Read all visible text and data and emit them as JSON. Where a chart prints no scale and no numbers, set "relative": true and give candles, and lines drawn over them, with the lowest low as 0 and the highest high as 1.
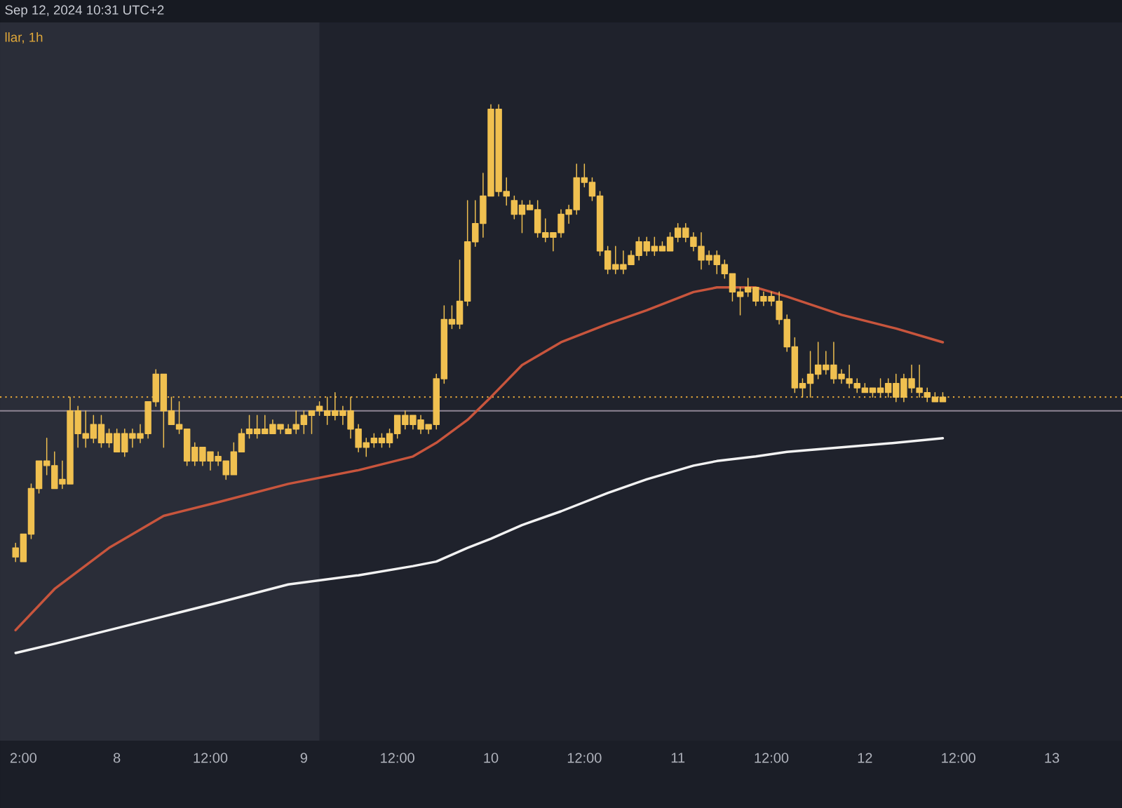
{
  "chart_data": {
    "type": "candlestick",
    "title": "Sep 12, 2024 10:31 UTC+2",
    "subtitle": "llar, 1h",
    "relative": true,
    "xlim": [
      "2024-09-07T09:00",
      "2024-09-13T09:00"
    ],
    "xticks": [
      {
        "value": "2024-09-07T12:00",
        "label": "2:00"
      },
      {
        "value": "2024-09-08T00:00",
        "label": "8"
      },
      {
        "value": "2024-09-08T12:00",
        "label": "12:00"
      },
      {
        "value": "2024-09-09T00:00",
        "label": "9"
      },
      {
        "value": "2024-09-09T12:00",
        "label": "12:00"
      },
      {
        "value": "2024-09-10T00:00",
        "label": "10"
      },
      {
        "value": "2024-09-10T12:00",
        "label": "12:00"
      },
      {
        "value": "2024-09-11T00:00",
        "label": "11"
      },
      {
        "value": "2024-09-11T12:00",
        "label": "12:00"
      },
      {
        "value": "2024-09-12T00:00",
        "label": "12"
      },
      {
        "value": "2024-09-12T12:00",
        "label": "12:00"
      },
      {
        "value": "2024-09-13T00:00",
        "label": "13"
      }
    ],
    "bands": [
      {
        "axis": "x",
        "from": "2024-09-07T09:00",
        "to": "2024-09-09T02:00",
        "color": "#2a2d38"
      }
    ],
    "ref_lines": [
      {
        "axis": "y",
        "value": 0.33,
        "color": "#8e8593",
        "line_style": "solid"
      },
      {
        "axis": "y",
        "value": 0.36,
        "color": "#e2a63a",
        "line_style": "dotted"
      }
    ],
    "series": [
      {
        "type": "line",
        "color": "#f2f2f2",
        "x": [
          "2024-09-07T11:00",
          "2024-09-07T16:00",
          "2024-09-07T23:00",
          "2024-09-08T06:00",
          "2024-09-08T13:00",
          "2024-09-08T22:00",
          "2024-09-09T07:00",
          "2024-09-09T14:00",
          "2024-09-09T17:00",
          "2024-09-09T21:00",
          "2024-09-10T00:00",
          "2024-09-10T04:00",
          "2024-09-10T09:00",
          "2024-09-10T15:00",
          "2024-09-10T20:00",
          "2024-09-11T02:00",
          "2024-09-11T05:00",
          "2024-09-11T10:00",
          "2024-09-11T14:00",
          "2024-09-11T21:00",
          "2024-09-12T04:00",
          "2024-09-12T10:00"
        ],
        "values": [
          -0.2,
          -0.18,
          -0.15,
          -0.12,
          -0.09,
          -0.05,
          -0.03,
          -0.01,
          0.0,
          0.03,
          0.05,
          0.08,
          0.11,
          0.15,
          0.18,
          0.21,
          0.22,
          0.23,
          0.24,
          0.25,
          0.26,
          0.27
        ]
      },
      {
        "type": "line",
        "color": "#c8553d",
        "x": [
          "2024-09-07T11:00",
          "2024-09-07T16:00",
          "2024-09-07T23:00",
          "2024-09-08T06:00",
          "2024-09-08T13:00",
          "2024-09-08T22:00",
          "2024-09-09T07:00",
          "2024-09-09T14:00",
          "2024-09-09T17:00",
          "2024-09-09T21:00",
          "2024-09-10T00:00",
          "2024-09-10T04:00",
          "2024-09-10T09:00",
          "2024-09-10T15:00",
          "2024-09-10T20:00",
          "2024-09-11T02:00",
          "2024-09-11T05:00",
          "2024-09-11T10:00",
          "2024-09-11T14:00",
          "2024-09-11T21:00",
          "2024-09-12T04:00",
          "2024-09-12T10:00"
        ],
        "values": [
          -0.15,
          -0.06,
          0.03,
          0.1,
          0.13,
          0.17,
          0.2,
          0.23,
          0.26,
          0.31,
          0.36,
          0.43,
          0.48,
          0.52,
          0.55,
          0.59,
          0.6,
          0.6,
          0.58,
          0.54,
          0.51,
          0.48
        ]
      },
      {
        "color": "#f0c050",
        "x": [
          "2024-09-07T11:00",
          "2024-09-07T12:00",
          "2024-09-07T13:00",
          "2024-09-07T14:00",
          "2024-09-07T15:00",
          "2024-09-07T16:00",
          "2024-09-07T17:00",
          "2024-09-07T18:00",
          "2024-09-07T19:00",
          "2024-09-07T20:00",
          "2024-09-07T21:00",
          "2024-09-07T22:00",
          "2024-09-07T23:00",
          "2024-09-08T00:00",
          "2024-09-08T01:00",
          "2024-09-08T02:00",
          "2024-09-08T03:00",
          "2024-09-08T04:00",
          "2024-09-08T05:00",
          "2024-09-08T06:00",
          "2024-09-08T07:00",
          "2024-09-08T08:00",
          "2024-09-08T09:00",
          "2024-09-08T10:00",
          "2024-09-08T11:00",
          "2024-09-08T12:00",
          "2024-09-08T13:00",
          "2024-09-08T14:00",
          "2024-09-08T15:00",
          "2024-09-08T16:00",
          "2024-09-08T17:00",
          "2024-09-08T18:00",
          "2024-09-08T19:00",
          "2024-09-08T20:00",
          "2024-09-08T21:00",
          "2024-09-08T22:00",
          "2024-09-08T23:00",
          "2024-09-09T00:00",
          "2024-09-09T01:00",
          "2024-09-09T02:00",
          "2024-09-09T03:00",
          "2024-09-09T04:00",
          "2024-09-09T05:00",
          "2024-09-09T06:00",
          "2024-09-09T07:00",
          "2024-09-09T08:00",
          "2024-09-09T09:00",
          "2024-09-09T10:00",
          "2024-09-09T11:00",
          "2024-09-09T12:00",
          "2024-09-09T13:00",
          "2024-09-09T14:00",
          "2024-09-09T15:00",
          "2024-09-09T16:00",
          "2024-09-09T17:00",
          "2024-09-09T18:00",
          "2024-09-09T19:00",
          "2024-09-09T20:00",
          "2024-09-09T21:00",
          "2024-09-09T22:00",
          "2024-09-09T23:00",
          "2024-09-10T00:00",
          "2024-09-10T01:00",
          "2024-09-10T02:00",
          "2024-09-10T03:00",
          "2024-09-10T04:00",
          "2024-09-10T05:00",
          "2024-09-10T06:00",
          "2024-09-10T07:00",
          "2024-09-10T08:00",
          "2024-09-10T09:00",
          "2024-09-10T10:00",
          "2024-09-10T11:00",
          "2024-09-10T12:00",
          "2024-09-10T13:00",
          "2024-09-10T14:00",
          "2024-09-10T15:00",
          "2024-09-10T16:00",
          "2024-09-10T17:00",
          "2024-09-10T18:00",
          "2024-09-10T19:00",
          "2024-09-10T20:00",
          "2024-09-10T21:00",
          "2024-09-10T22:00",
          "2024-09-10T23:00",
          "2024-09-11T00:00",
          "2024-09-11T01:00",
          "2024-09-11T02:00",
          "2024-09-11T03:00",
          "2024-09-11T04:00",
          "2024-09-11T05:00",
          "2024-09-11T06:00",
          "2024-09-11T07:00",
          "2024-09-11T08:00",
          "2024-09-11T09:00",
          "2024-09-11T10:00",
          "2024-09-11T11:00",
          "2024-09-11T12:00",
          "2024-09-11T13:00",
          "2024-09-11T14:00",
          "2024-09-11T15:00",
          "2024-09-11T16:00",
          "2024-09-11T17:00",
          "2024-09-11T18:00",
          "2024-09-11T19:00",
          "2024-09-11T20:00",
          "2024-09-11T21:00",
          "2024-09-11T22:00",
          "2024-09-11T23:00",
          "2024-09-12T00:00",
          "2024-09-12T01:00",
          "2024-09-12T02:00",
          "2024-09-12T03:00",
          "2024-09-12T04:00",
          "2024-09-12T05:00",
          "2024-09-12T06:00",
          "2024-09-12T07:00",
          "2024-09-12T08:00",
          "2024-09-12T09:00",
          "2024-09-12T10:00"
        ],
        "ohlc": [
          [
            0.01,
            0.04,
            0.0,
            0.03
          ],
          [
            0.0,
            0.06,
            0.0,
            0.06
          ],
          [
            0.06,
            0.17,
            0.05,
            0.16
          ],
          [
            0.16,
            0.22,
            0.15,
            0.22
          ],
          [
            0.21,
            0.27,
            0.19,
            0.22
          ],
          [
            0.21,
            0.24,
            0.16,
            0.16
          ],
          [
            0.17,
            0.22,
            0.16,
            0.18
          ],
          [
            0.17,
            0.36,
            0.17,
            0.33
          ],
          [
            0.33,
            0.34,
            0.25,
            0.28
          ],
          [
            0.28,
            0.33,
            0.25,
            0.27
          ],
          [
            0.27,
            0.32,
            0.26,
            0.3
          ],
          [
            0.3,
            0.32,
            0.25,
            0.26
          ],
          [
            0.26,
            0.29,
            0.25,
            0.28
          ],
          [
            0.28,
            0.29,
            0.24,
            0.24
          ],
          [
            0.24,
            0.29,
            0.23,
            0.28
          ],
          [
            0.28,
            0.29,
            0.25,
            0.27
          ],
          [
            0.27,
            0.3,
            0.26,
            0.28
          ],
          [
            0.28,
            0.35,
            0.27,
            0.35
          ],
          [
            0.35,
            0.42,
            0.34,
            0.41
          ],
          [
            0.41,
            0.41,
            0.25,
            0.33
          ],
          [
            0.33,
            0.36,
            0.3,
            0.3
          ],
          [
            0.3,
            0.35,
            0.28,
            0.29
          ],
          [
            0.29,
            0.29,
            0.21,
            0.22
          ],
          [
            0.22,
            0.26,
            0.21,
            0.25
          ],
          [
            0.25,
            0.25,
            0.21,
            0.22
          ],
          [
            0.22,
            0.24,
            0.2,
            0.24
          ],
          [
            0.23,
            0.24,
            0.21,
            0.22
          ],
          [
            0.22,
            0.22,
            0.18,
            0.19
          ],
          [
            0.19,
            0.26,
            0.19,
            0.24
          ],
          [
            0.24,
            0.29,
            0.24,
            0.28
          ],
          [
            0.28,
            0.32,
            0.27,
            0.29
          ],
          [
            0.28,
            0.32,
            0.27,
            0.29
          ],
          [
            0.29,
            0.32,
            0.28,
            0.28
          ],
          [
            0.28,
            0.31,
            0.28,
            0.3
          ],
          [
            0.3,
            0.3,
            0.28,
            0.29
          ],
          [
            0.29,
            0.3,
            0.28,
            0.28
          ],
          [
            0.29,
            0.33,
            0.28,
            0.3
          ],
          [
            0.3,
            0.33,
            0.28,
            0.32
          ],
          [
            0.32,
            0.33,
            0.28,
            0.33
          ],
          [
            0.34,
            0.35,
            0.32,
            0.33
          ],
          [
            0.33,
            0.36,
            0.3,
            0.32
          ],
          [
            0.32,
            0.37,
            0.31,
            0.33
          ],
          [
            0.32,
            0.34,
            0.3,
            0.33
          ],
          [
            0.33,
            0.36,
            0.27,
            0.29
          ],
          [
            0.29,
            0.3,
            0.24,
            0.25
          ],
          [
            0.25,
            0.27,
            0.23,
            0.26
          ],
          [
            0.26,
            0.28,
            0.25,
            0.27
          ],
          [
            0.27,
            0.28,
            0.25,
            0.26
          ],
          [
            0.26,
            0.29,
            0.25,
            0.28
          ],
          [
            0.28,
            0.32,
            0.27,
            0.32
          ],
          [
            0.32,
            0.33,
            0.29,
            0.3
          ],
          [
            0.3,
            0.32,
            0.29,
            0.32
          ],
          [
            0.31,
            0.32,
            0.28,
            0.29
          ],
          [
            0.29,
            0.3,
            0.28,
            0.3
          ],
          [
            0.3,
            0.41,
            0.29,
            0.4
          ],
          [
            0.4,
            0.56,
            0.39,
            0.53
          ],
          [
            0.53,
            0.56,
            0.51,
            0.52
          ],
          [
            0.52,
            0.66,
            0.51,
            0.57
          ],
          [
            0.57,
            0.79,
            0.56,
            0.7
          ],
          [
            0.7,
            0.79,
            0.69,
            0.74
          ],
          [
            0.74,
            0.85,
            0.71,
            0.8
          ],
          [
            0.8,
            1.0,
            0.8,
            0.99
          ],
          [
            0.99,
            1.0,
            0.8,
            0.81
          ],
          [
            0.81,
            0.84,
            0.78,
            0.8
          ],
          [
            0.79,
            0.8,
            0.75,
            0.76
          ],
          [
            0.76,
            0.79,
            0.72,
            0.78
          ],
          [
            0.78,
            0.79,
            0.77,
            0.77
          ],
          [
            0.77,
            0.79,
            0.71,
            0.72
          ],
          [
            0.72,
            0.75,
            0.7,
            0.71
          ],
          [
            0.71,
            0.72,
            0.68,
            0.72
          ],
          [
            0.72,
            0.77,
            0.71,
            0.76
          ],
          [
            0.76,
            0.78,
            0.74,
            0.77
          ],
          [
            0.77,
            0.87,
            0.76,
            0.84
          ],
          [
            0.84,
            0.87,
            0.82,
            0.83
          ],
          [
            0.83,
            0.84,
            0.79,
            0.8
          ],
          [
            0.8,
            0.81,
            0.67,
            0.68
          ],
          [
            0.68,
            0.69,
            0.63,
            0.64
          ],
          [
            0.64,
            0.69,
            0.63,
            0.65
          ],
          [
            0.64,
            0.68,
            0.63,
            0.65
          ],
          [
            0.65,
            0.68,
            0.65,
            0.67
          ],
          [
            0.67,
            0.71,
            0.66,
            0.7
          ],
          [
            0.7,
            0.71,
            0.67,
            0.68
          ],
          [
            0.68,
            0.71,
            0.67,
            0.69
          ],
          [
            0.69,
            0.7,
            0.68,
            0.68
          ],
          [
            0.68,
            0.72,
            0.68,
            0.71
          ],
          [
            0.71,
            0.74,
            0.7,
            0.73
          ],
          [
            0.73,
            0.74,
            0.7,
            0.71
          ],
          [
            0.71,
            0.72,
            0.68,
            0.69
          ],
          [
            0.69,
            0.72,
            0.64,
            0.66
          ],
          [
            0.66,
            0.68,
            0.65,
            0.67
          ],
          [
            0.67,
            0.68,
            0.63,
            0.65
          ],
          [
            0.65,
            0.66,
            0.62,
            0.63
          ],
          [
            0.63,
            0.63,
            0.57,
            0.59
          ],
          [
            0.59,
            0.6,
            0.54,
            0.58
          ],
          [
            0.59,
            0.62,
            0.58,
            0.6
          ],
          [
            0.6,
            0.6,
            0.56,
            0.57
          ],
          [
            0.57,
            0.59,
            0.56,
            0.58
          ],
          [
            0.58,
            0.59,
            0.56,
            0.57
          ],
          [
            0.57,
            0.59,
            0.52,
            0.53
          ],
          [
            0.53,
            0.54,
            0.46,
            0.47
          ],
          [
            0.47,
            0.49,
            0.37,
            0.38
          ],
          [
            0.38,
            0.4,
            0.36,
            0.39
          ],
          [
            0.39,
            0.46,
            0.36,
            0.41
          ],
          [
            0.41,
            0.48,
            0.4,
            0.43
          ],
          [
            0.43,
            0.46,
            0.41,
            0.42
          ],
          [
            0.43,
            0.48,
            0.39,
            0.4
          ],
          [
            0.4,
            0.42,
            0.39,
            0.41
          ],
          [
            0.4,
            0.43,
            0.38,
            0.39
          ],
          [
            0.39,
            0.4,
            0.37,
            0.38
          ],
          [
            0.38,
            0.39,
            0.37,
            0.37
          ],
          [
            0.38,
            0.38,
            0.36,
            0.37
          ],
          [
            0.38,
            0.4,
            0.36,
            0.37
          ],
          [
            0.37,
            0.4,
            0.36,
            0.39
          ],
          [
            0.39,
            0.41,
            0.35,
            0.36
          ],
          [
            0.36,
            0.41,
            0.35,
            0.4
          ],
          [
            0.4,
            0.43,
            0.37,
            0.38
          ],
          [
            0.38,
            0.43,
            0.36,
            0.37
          ],
          [
            0.37,
            0.38,
            0.35,
            0.36
          ],
          [
            0.36,
            0.37,
            0.35,
            0.35
          ],
          [
            0.35,
            0.37,
            0.35,
            0.36
          ]
        ]
      }
    ]
  }
}
